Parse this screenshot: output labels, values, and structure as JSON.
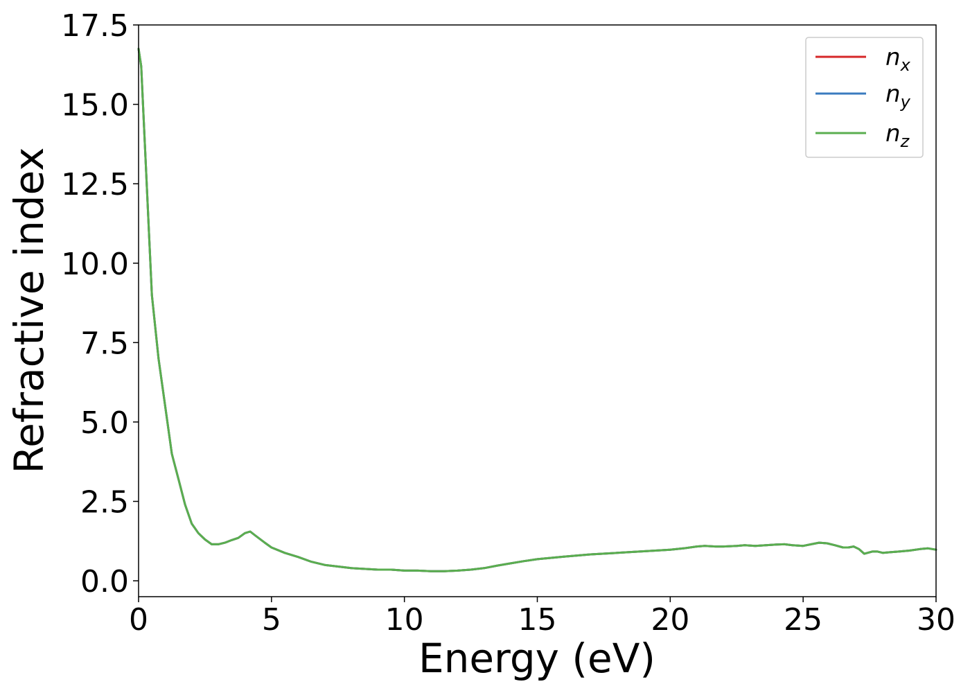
{
  "chart_data": {
    "type": "line",
    "title": "",
    "xlabel": "Energy (eV)",
    "ylabel": "Refractive index",
    "xlim": [
      0,
      30
    ],
    "ylim": [
      -0.5,
      17.5
    ],
    "grid": false,
    "legend_position": "top-right",
    "x_ticks": [
      "0",
      "5",
      "10",
      "15",
      "20",
      "25",
      "30"
    ],
    "x_tick_values": [
      0,
      5,
      10,
      15,
      20,
      25,
      30
    ],
    "y_ticks": [
      "0.0",
      "2.5",
      "5.0",
      "7.5",
      "10.0",
      "12.5",
      "15.0",
      "17.5"
    ],
    "y_tick_values": [
      0,
      2.5,
      5,
      7.5,
      10,
      12.5,
      15,
      17.5
    ],
    "series": [
      {
        "name": "n",
        "subscript": "x",
        "color": "#d62728"
      },
      {
        "name": "n",
        "subscript": "y",
        "color": "#3a7bbf"
      },
      {
        "name": "n",
        "subscript": "z",
        "color": "#5aae4f"
      }
    ],
    "x": [
      0,
      0.1,
      0.25,
      0.5,
      0.75,
      1.0,
      1.25,
      1.5,
      1.75,
      2.0,
      2.25,
      2.5,
      2.75,
      3.0,
      3.25,
      3.5,
      3.75,
      4.0,
      4.2,
      4.4,
      4.75,
      5.0,
      5.5,
      6.0,
      6.5,
      7.0,
      7.5,
      8.0,
      9.0,
      9.5,
      10.0,
      10.5,
      11.0,
      11.5,
      12.0,
      12.5,
      13.0,
      13.5,
      14.0,
      14.5,
      15.0,
      16.0,
      17.0,
      18.0,
      19.0,
      20.0,
      20.5,
      21.0,
      21.3,
      21.7,
      22.0,
      22.5,
      22.8,
      23.2,
      23.6,
      24.0,
      24.3,
      24.6,
      25.0,
      25.3,
      25.6,
      25.9,
      26.2,
      26.5,
      26.7,
      26.9,
      27.1,
      27.3,
      27.6,
      27.8,
      28.0,
      28.3,
      28.6,
      29.0,
      29.4,
      29.7,
      30.0
    ],
    "y": [
      16.75,
      16.2,
      13.5,
      9.0,
      7.0,
      5.5,
      4.0,
      3.2,
      2.4,
      1.8,
      1.5,
      1.3,
      1.15,
      1.15,
      1.2,
      1.28,
      1.35,
      1.5,
      1.55,
      1.42,
      1.2,
      1.05,
      0.88,
      0.75,
      0.6,
      0.5,
      0.45,
      0.4,
      0.35,
      0.35,
      0.32,
      0.32,
      0.3,
      0.3,
      0.32,
      0.35,
      0.4,
      0.48,
      0.55,
      0.62,
      0.68,
      0.76,
      0.83,
      0.88,
      0.93,
      0.98,
      1.02,
      1.08,
      1.1,
      1.08,
      1.08,
      1.1,
      1.12,
      1.1,
      1.12,
      1.14,
      1.15,
      1.12,
      1.1,
      1.15,
      1.2,
      1.18,
      1.12,
      1.05,
      1.05,
      1.08,
      1.0,
      0.85,
      0.92,
      0.92,
      0.88,
      0.9,
      0.92,
      0.95,
      1.0,
      1.02,
      0.98
    ]
  }
}
